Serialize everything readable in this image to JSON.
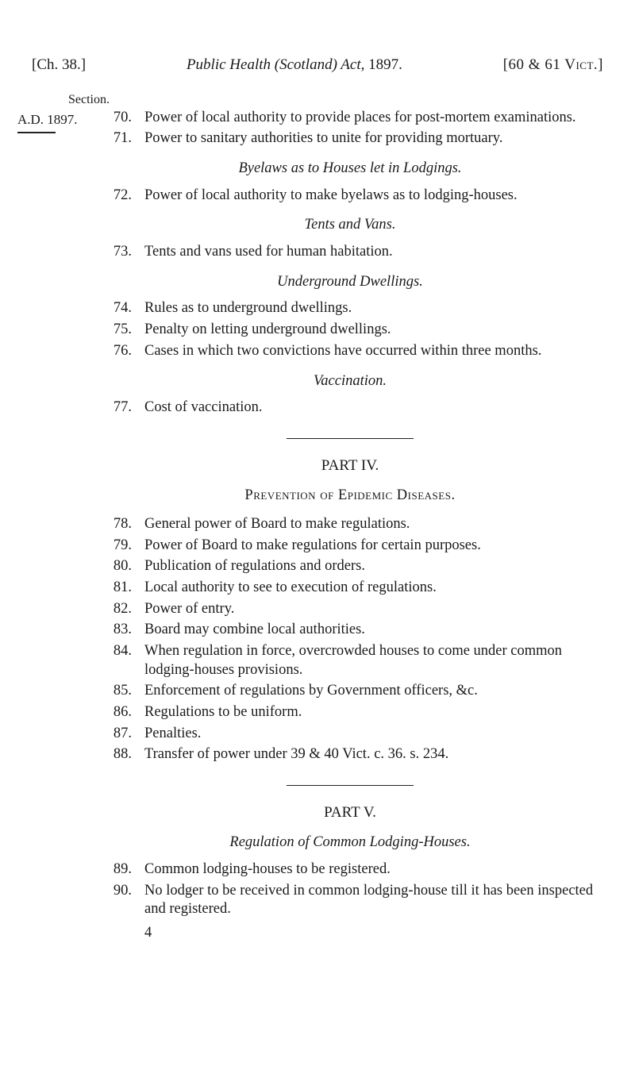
{
  "header": {
    "chapter": "[Ch. 38.]",
    "title_italic": "Public Health (Scotland) Act,",
    "year": "1897.",
    "statute": "[60 & 61 Vict.]"
  },
  "marginal": {
    "ad": "A.D. 1897."
  },
  "section_word": "Section.",
  "group_initial": [
    {
      "n": "70.",
      "t": "Power of local authority to provide places for post-mortem examinations."
    },
    {
      "n": "71.",
      "t": "Power to sanitary authorities to unite for providing mortuary."
    }
  ],
  "grp_byelaws_title": "Byelaws as to Houses let in Lodgings.",
  "grp_byelaws": [
    {
      "n": "72.",
      "t": "Power of local authority to make byelaws as to lodging-houses."
    }
  ],
  "grp_tents_title": "Tents and Vans.",
  "grp_tents": [
    {
      "n": "73.",
      "t": "Tents and vans used for human habitation."
    }
  ],
  "grp_under_title": "Underground Dwellings.",
  "grp_under": [
    {
      "n": "74.",
      "t": "Rules as to underground dwellings."
    },
    {
      "n": "75.",
      "t": "Penalty on letting underground dwellings."
    },
    {
      "n": "76.",
      "t": "Cases in which two convictions have occurred within three months."
    }
  ],
  "grp_vacc_title": "Vaccination.",
  "grp_vacc": [
    {
      "n": "77.",
      "t": "Cost of vaccination."
    }
  ],
  "part4": {
    "title": "PART IV.",
    "heading": "Prevention of Epidemic Diseases.",
    "items": [
      {
        "n": "78.",
        "t": "General power of Board to make regulations."
      },
      {
        "n": "79.",
        "t": "Power of Board to make regulations for certain purposes."
      },
      {
        "n": "80.",
        "t": "Publication of regulations and orders."
      },
      {
        "n": "81.",
        "t": "Local authority to see to execution of regulations."
      },
      {
        "n": "82.",
        "t": "Power of entry."
      },
      {
        "n": "83.",
        "t": "Board may combine local authorities."
      },
      {
        "n": "84.",
        "t": "When regulation in force, overcrowded houses to come under common lodging-houses provisions."
      },
      {
        "n": "85.",
        "t": "Enforcement of regulations by Government officers, &c."
      },
      {
        "n": "86.",
        "t": "Regulations to be uniform."
      },
      {
        "n": "87.",
        "t": "Penalties."
      },
      {
        "n": "88.",
        "t": "Transfer of power under 39 & 40 Vict. c. 36. s. 234."
      }
    ]
  },
  "part5": {
    "title": "PART V.",
    "heading": "Regulation of Common Lodging-Houses.",
    "items": [
      {
        "n": "89.",
        "t": "Common lodging-houses to be registered."
      },
      {
        "n": "90.",
        "t": "No lodger to be received in common lodging-house till it has been inspected and registered."
      }
    ]
  },
  "page_number": "4"
}
